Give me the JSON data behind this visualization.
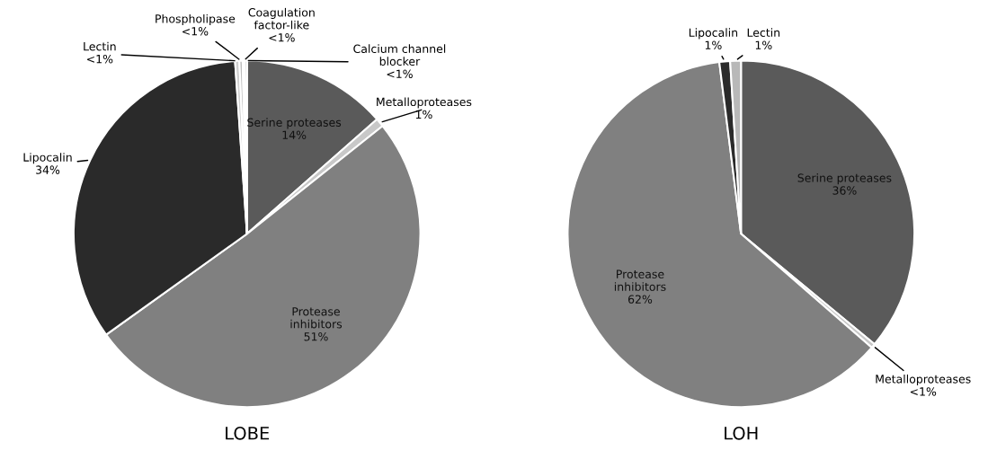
{
  "chart_data": [
    {
      "type": "pie",
      "title": "LOBE",
      "categories": [
        "Serine proteases",
        "Metalloproteases",
        "Protease\ninhibitors",
        "Lipocalin",
        "Lectin",
        "Phospholipase",
        "Coagulation\nfactor-like",
        "Calcium channel\nblocker"
      ],
      "values": [
        13.5,
        0.8,
        50.8,
        33.8,
        0.4,
        0.3,
        0.2,
        0.2
      ],
      "value_labels": [
        "14%",
        "1%",
        "51%",
        "34%",
        "<1%",
        "<1%",
        "<1%",
        "<1%"
      ],
      "colors": [
        "#5a5a5a",
        "#c8c8c8",
        "#808080",
        "#2a2a2a",
        "#d0d0d0",
        "#bcbcbc",
        "#e0e0e0",
        "#a8a8a8"
      ]
    },
    {
      "type": "pie",
      "title": "LOH",
      "categories": [
        "Serine proteases",
        "Metalloproteases",
        "Protease\ninhibitors",
        "Lipocalin",
        "Lectin"
      ],
      "values": [
        36,
        0.4,
        61.6,
        1,
        1
      ],
      "value_labels": [
        "36%",
        "<1%",
        "62%",
        "1%",
        "1%"
      ],
      "colors": [
        "#5a5a5a",
        "#c8c8c8",
        "#808080",
        "#2a2a2a",
        "#b8b8b8"
      ]
    }
  ]
}
